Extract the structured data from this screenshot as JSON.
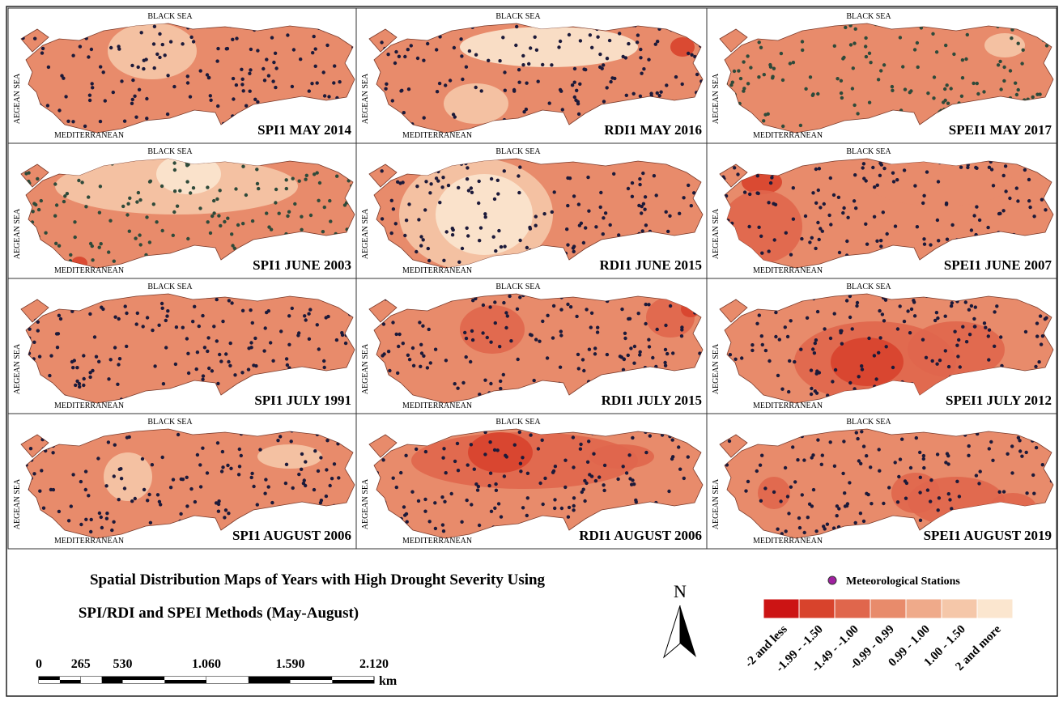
{
  "panels": [
    {
      "label": "SPI1 MAY 2014"
    },
    {
      "label": "RDI1 MAY 2016"
    },
    {
      "label": "SPEI1 MAY 2017"
    },
    {
      "label": "SPI1 JUNE 2003"
    },
    {
      "label": "RDI1 JUNE 2015"
    },
    {
      "label": "SPEI1 JUNE 2007"
    },
    {
      "label": "SPI1 JULY 1991"
    },
    {
      "label": "RDI1 JULY 2015"
    },
    {
      "label": "SPEI1 JULY 2012"
    },
    {
      "label": "SPI1 AUGUST 2006"
    },
    {
      "label": "RDI1 AUGUST 2006"
    },
    {
      "label": "SPEI1 AUGUST 2019"
    }
  ],
  "sea_labels": {
    "north": "BLACK SEA",
    "west": "AEGEAN SEA",
    "south": "MEDITERRANEAN"
  },
  "title": {
    "line1": "Spatial Distribution Maps of Years with High Drought  Severity Using",
    "line2": "SPI/RDI and SPEI Methods (May-August)"
  },
  "north": "N",
  "legend": {
    "stations": "Meteorological Stations",
    "classes": [
      {
        "label": "-2 and less",
        "color": "#cc1414"
      },
      {
        "label": "-1.99 - -1.50",
        "color": "#d8432c"
      },
      {
        "label": "-1.49 - -1.00",
        "color": "#e0664c"
      },
      {
        "label": "-0.99 - 0.99",
        "color": "#e88b6b"
      },
      {
        "label": "0.99 - 1.00",
        "color": "#efaa8a"
      },
      {
        "label": "1.00 - 1.50",
        "color": "#f5c7a9"
      },
      {
        "label": "2 and more",
        "color": "#fbe6cf"
      }
    ]
  },
  "scale": {
    "xlim": [
      0,
      2120
    ],
    "ticks": [
      0,
      265,
      530,
      {
        "value": 1060,
        "label": "1.060"
      },
      {
        "value": 1590,
        "label": "1.590"
      },
      {
        "value": 2120,
        "label": "2.120"
      }
    ],
    "unit": "km"
  }
}
